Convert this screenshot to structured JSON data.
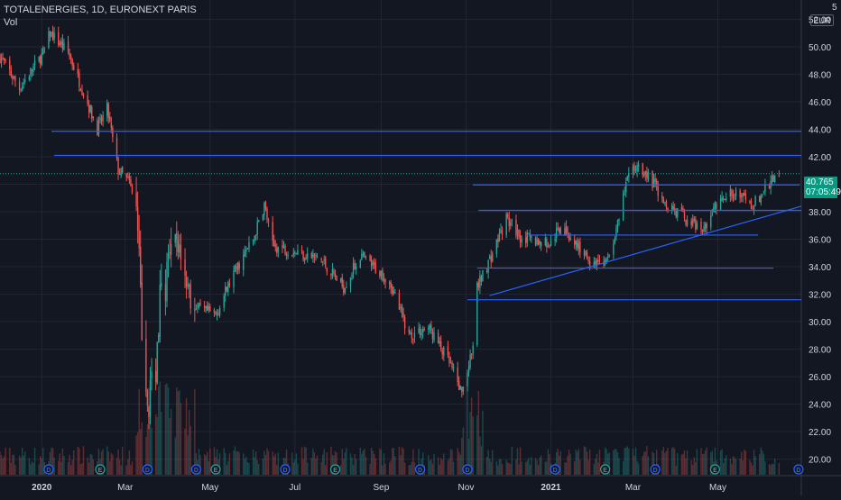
{
  "header": {
    "symbol": "TOTALENERGIES, 1D, EURONEXT PARIS",
    "indicator": "Vol",
    "currency": "EUR",
    "top_right_glyph": "5"
  },
  "price_badge": {
    "price": "40.765",
    "countdown": "07:05:49",
    "color": "#089981"
  },
  "colors": {
    "background": "#131722",
    "grid": "#232632",
    "up": "#26a69a",
    "down": "#ef5350",
    "line": "#2962ff",
    "text": "#d1d4dc",
    "axis_border": "#363a45"
  },
  "events": [
    {
      "label": "D",
      "x": "2020-01-06"
    },
    {
      "label": "E",
      "x": "2020-02-12"
    },
    {
      "label": "D",
      "x": "2020-03-17"
    },
    {
      "label": "D",
      "x": "2020-04-21"
    },
    {
      "label": "E",
      "x": "2020-05-05"
    },
    {
      "label": "D",
      "x": "2020-06-24"
    },
    {
      "label": "E",
      "x": "2020-07-30"
    },
    {
      "label": "D",
      "x": "2020-09-29"
    },
    {
      "label": "D",
      "x": "2020-11-02"
    },
    {
      "label": "D",
      "x": "2021-01-04"
    },
    {
      "label": "E",
      "x": "2021-02-09"
    },
    {
      "label": "D",
      "x": "2021-03-17"
    },
    {
      "label": "E",
      "x": "2021-04-29"
    },
    {
      "label": "D",
      "x": "2021-06-28"
    }
  ],
  "chart_data": {
    "type": "candlestick",
    "title": "TOTALENERGIES, 1D, EURONEXT PARIS",
    "ylabel": "EUR",
    "xlim": [
      "2019-12-02",
      "2021-06-30"
    ],
    "ylim": [
      18.8,
      53.4
    ],
    "y_ticks": [
      20,
      22,
      24,
      26,
      28,
      30,
      32,
      34,
      36,
      38,
      40,
      42,
      44,
      46,
      48,
      50,
      52
    ],
    "y_tick_labels": [
      "20.00",
      "22.00",
      "24.00",
      "26.00",
      "28.00",
      "30.00",
      "32.00",
      "34.00",
      "36.00",
      "38.00",
      "40.00",
      "42.00",
      "44.00",
      "46.00",
      "48.00",
      "50.00",
      "52.00"
    ],
    "x_ticks": [
      {
        "label": "2020",
        "x": "2020-01-01"
      },
      {
        "label": "Mar",
        "x": "2020-03-01"
      },
      {
        "label": "May",
        "x": "2020-05-01"
      },
      {
        "label": "Jul",
        "x": "2020-07-01"
      },
      {
        "label": "Sep",
        "x": "2020-09-01"
      },
      {
        "label": "Nov",
        "x": "2020-11-01"
      },
      {
        "label": "2021",
        "x": "2021-01-01"
      },
      {
        "label": "Mar",
        "x": "2021-03-01"
      },
      {
        "label": "May",
        "x": "2021-05-01"
      }
    ],
    "grid": true,
    "last_price": 40.765,
    "close_path": [
      [
        "2019-12-02",
        49.3
      ],
      [
        "2019-12-16",
        47.0
      ],
      [
        "2020-01-02",
        49.5
      ],
      [
        "2020-01-07",
        51.0
      ],
      [
        "2020-01-20",
        49.6
      ],
      [
        "2020-02-03",
        45.9
      ],
      [
        "2020-02-10",
        44.0
      ],
      [
        "2020-02-17",
        45.5
      ],
      [
        "2020-02-25",
        41.0
      ],
      [
        "2020-03-04",
        40.1
      ],
      [
        "2020-03-09",
        38.0
      ],
      [
        "2020-03-12",
        32.0
      ],
      [
        "2020-03-16",
        23.5
      ],
      [
        "2020-03-18",
        24.5
      ],
      [
        "2020-03-23",
        27.0
      ],
      [
        "2020-03-26",
        31.5
      ],
      [
        "2020-04-03",
        34.5
      ],
      [
        "2020-04-08",
        36.0
      ],
      [
        "2020-04-20",
        31.0
      ],
      [
        "2020-05-05",
        30.5
      ],
      [
        "2020-05-18",
        33.5
      ],
      [
        "2020-06-01",
        36.0
      ],
      [
        "2020-06-09",
        38.5
      ],
      [
        "2020-06-15",
        35.5
      ],
      [
        "2020-06-29",
        35.2
      ],
      [
        "2020-07-20",
        34.5
      ],
      [
        "2020-08-05",
        32.5
      ],
      [
        "2020-08-17",
        34.8
      ],
      [
        "2020-09-07",
        33.0
      ],
      [
        "2020-09-21",
        29.0
      ],
      [
        "2020-10-05",
        29.6
      ],
      [
        "2020-10-20",
        27.0
      ],
      [
        "2020-10-29",
        24.8
      ],
      [
        "2020-11-06",
        28.0
      ],
      [
        "2020-11-09",
        32.5
      ],
      [
        "2020-11-20",
        35.0
      ],
      [
        "2020-11-30",
        37.5
      ],
      [
        "2020-12-10",
        36.2
      ],
      [
        "2020-12-31",
        35.6
      ],
      [
        "2021-01-08",
        37.0
      ],
      [
        "2021-01-29",
        34.5
      ],
      [
        "2021-02-10",
        34.3
      ],
      [
        "2021-02-18",
        37.0
      ],
      [
        "2021-02-25",
        40.5
      ],
      [
        "2021-03-05",
        41.5
      ],
      [
        "2021-03-16",
        40.0
      ],
      [
        "2021-03-26",
        38.5
      ],
      [
        "2021-04-08",
        37.5
      ],
      [
        "2021-04-20",
        36.6
      ],
      [
        "2021-04-30",
        38.5
      ],
      [
        "2021-05-14",
        39.5
      ],
      [
        "2021-05-25",
        38.3
      ],
      [
        "2021-06-07",
        40.0
      ],
      [
        "2021-06-14",
        40.8
      ]
    ],
    "horizontal_levels": [
      {
        "y": 43.85,
        "from": "2020-01-08",
        "to": "2021-06-30"
      },
      {
        "y": 42.1,
        "from": "2020-01-10",
        "to": "2021-06-30"
      },
      {
        "y": 39.95,
        "from": "2020-11-06",
        "to": "2021-06-29"
      },
      {
        "y": 38.1,
        "from": "2020-11-10",
        "to": "2021-06-30"
      },
      {
        "y": 36.3,
        "from": "2020-12-16",
        "to": "2021-05-30"
      },
      {
        "y": 33.9,
        "from": "2020-11-09",
        "to": "2021-06-10"
      },
      {
        "y": 31.6,
        "from": "2020-11-02",
        "to": "2021-06-30"
      }
    ],
    "trendline": {
      "from": [
        "2020-11-18",
        31.9
      ],
      "to": [
        "2021-06-30",
        38.4
      ]
    }
  }
}
